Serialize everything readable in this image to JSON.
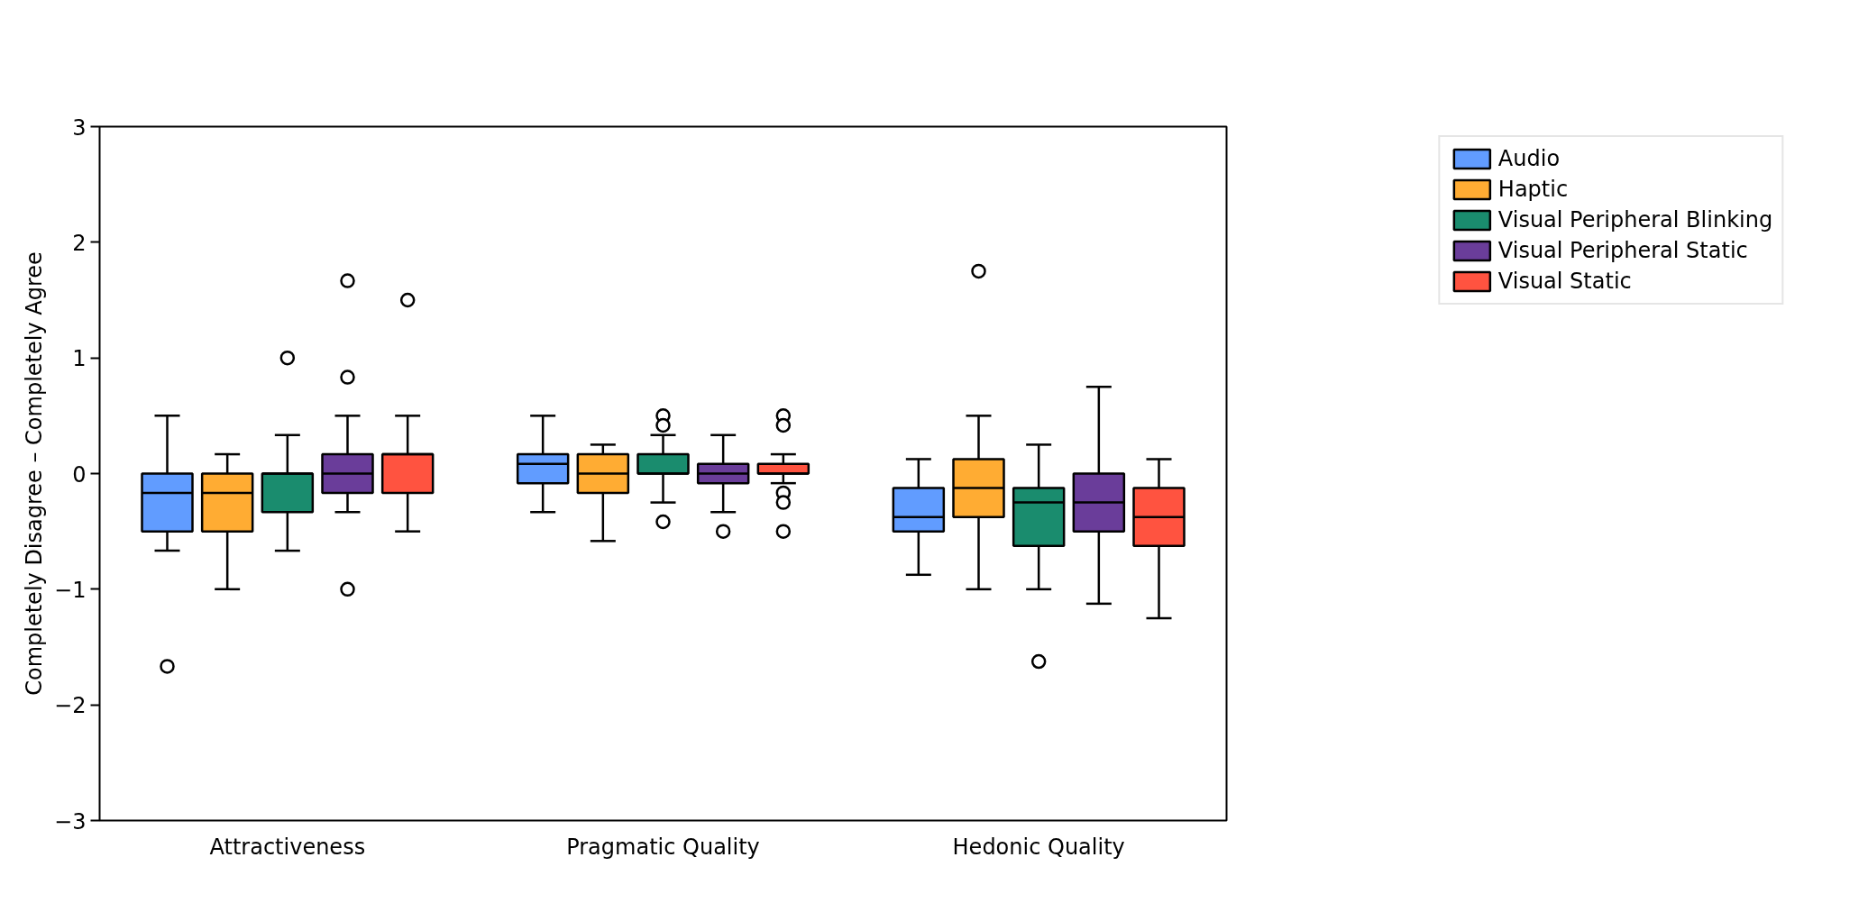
{
  "chart_data": {
    "type": "box",
    "categories": [
      "Attractiveness",
      "Pragmatic Quality",
      "Hedonic Quality"
    ],
    "ylabel": "Completely Disagree – Completely Agree",
    "ylim": [
      -3,
      3
    ],
    "yticks": [
      -3,
      -2,
      -1,
      0,
      1,
      2,
      3
    ],
    "legend": "right",
    "series": [
      {
        "name": "Audio",
        "color": "#619cff",
        "boxes": [
          {
            "low": -0.667,
            "q1": -0.5,
            "median": -0.167,
            "q3": 0,
            "high": 0.5,
            "outliers": [
              -1.667
            ]
          },
          {
            "low": -0.333,
            "q1": -0.083,
            "median": 0.083,
            "q3": 0.167,
            "high": 0.5
          },
          {
            "low": -0.875,
            "q1": -0.5,
            "median": -0.375,
            "q3": -0.125,
            "high": 0.125
          }
        ]
      },
      {
        "name": "Haptic",
        "color": "#ffac33",
        "boxes": [
          {
            "low": -1.0,
            "q1": -0.5,
            "median": -0.167,
            "q3": 0,
            "high": 0.167
          },
          {
            "low": -0.583,
            "q1": -0.167,
            "median": 0,
            "q3": 0.167,
            "high": 0.25
          },
          {
            "low": -1.0,
            "q1": -0.375,
            "median": -0.125,
            "q3": 0.125,
            "high": 0.5,
            "outliers": [
              1.75
            ]
          }
        ]
      },
      {
        "name": "Visual Peripheral Blinking",
        "color": "#1a8c6e",
        "boxes": [
          {
            "low": -0.667,
            "q1": -0.333,
            "median": 0,
            "q3": 0,
            "high": 0.333,
            "outliers": [
              1.0
            ]
          },
          {
            "low": -0.25,
            "q1": 0,
            "median": 0,
            "q3": 0.167,
            "high": 0.333,
            "outliers": [
              0.5,
              0.417,
              -0.417
            ]
          },
          {
            "low": -1.0,
            "q1": -0.625,
            "median": -0.25,
            "q3": -0.125,
            "high": 0.25,
            "outliers": [
              -1.625
            ]
          }
        ]
      },
      {
        "name": "Visual Peripheral Static",
        "color": "#6a3d9a",
        "boxes": [
          {
            "low": -0.333,
            "q1": -0.167,
            "median": 0,
            "q3": 0.167,
            "high": 0.5,
            "outliers": [
              1.667,
              0.833,
              -1.0
            ]
          },
          {
            "low": -0.333,
            "q1": -0.083,
            "median": 0,
            "q3": 0.083,
            "high": 0.333,
            "outliers": [
              -0.5
            ]
          },
          {
            "low": -1.125,
            "q1": -0.5,
            "median": -0.25,
            "q3": 0,
            "high": 0.75
          }
        ]
      },
      {
        "name": "Visual Static",
        "color": "#ff5340",
        "boxes": [
          {
            "low": -0.5,
            "q1": -0.167,
            "median": 0.167,
            "q3": 0.167,
            "high": 0.5,
            "outliers": [
              1.5
            ]
          },
          {
            "low": -0.083,
            "q1": 0,
            "median": 0,
            "q3": 0.083,
            "high": 0.167,
            "outliers": [
              0.5,
              0.417,
              -0.167,
              -0.25,
              -0.5
            ]
          },
          {
            "low": -1.25,
            "q1": -0.625,
            "median": -0.375,
            "q3": -0.125,
            "high": 0.125
          }
        ]
      }
    ]
  }
}
